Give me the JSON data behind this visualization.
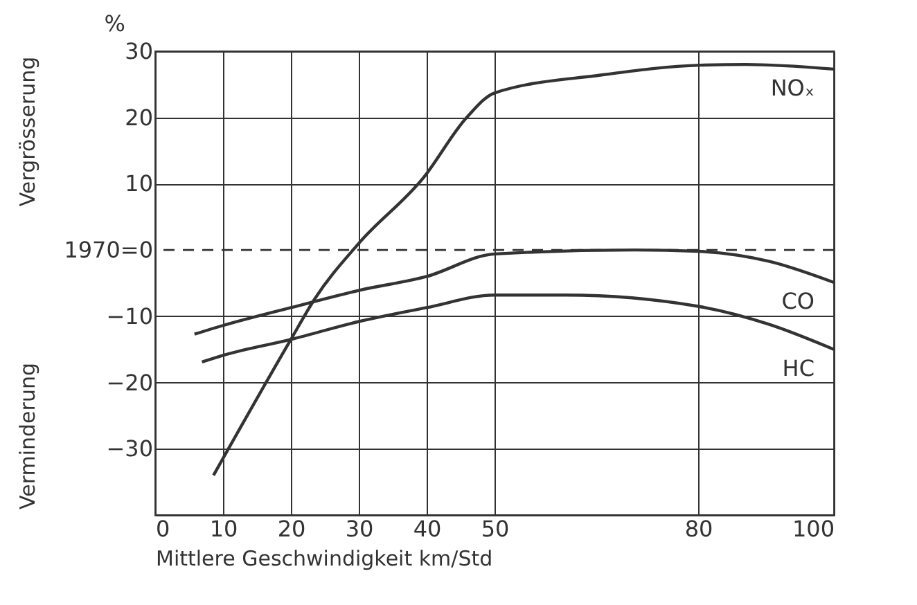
{
  "chart_data": {
    "type": "line",
    "xlabel": "Mittlere Geschwindigkeit km/Std",
    "ylabel": "%",
    "annotations": [
      "Vergrösserung",
      "Verminderung"
    ],
    "xlim": [
      0,
      100
    ],
    "xticks": [
      0,
      10,
      20,
      30,
      40,
      50,
      80,
      100
    ],
    "ylim": [
      -40,
      30
    ],
    "yticks": [
      {
        "value": -30,
        "label": "−30"
      },
      {
        "value": -20,
        "label": "−20"
      },
      {
        "value": -10,
        "label": "−10"
      },
      {
        "value": 0,
        "label": "1970=0"
      },
      10,
      20,
      30
    ],
    "grid": true,
    "legend": false,
    "marker": "none",
    "line_style": "solid",
    "ref_lines": [
      {
        "axis": "y",
        "value": 0,
        "line_style": "dashed",
        "color": "#333333"
      }
    ],
    "series": [
      {
        "name": "NOₓ",
        "color": "#333333",
        "x": [
          8.6,
          20,
          23.5,
          30,
          39.6,
          45.9,
          50,
          65.6,
          80.4,
          87,
          100
        ],
        "values": [
          -34,
          -13.5,
          -7.4,
          1,
          11,
          20,
          23.7,
          26.4,
          27.9,
          28,
          27.3
        ]
      },
      {
        "name": "CO",
        "color": "#333333",
        "x": [
          5.8,
          10,
          20,
          30,
          40,
          50,
          70.7,
          80,
          90.4,
          100
        ],
        "values": [
          -12.7,
          -11.4,
          -8.7,
          -6.1,
          -4,
          -0.6,
          0,
          -0.2,
          -1.7,
          -4.9
        ]
      },
      {
        "name": "HC",
        "color": "#333333",
        "x": [
          6.9,
          10,
          20,
          30,
          40,
          50,
          60.5,
          80,
          90.4,
          100
        ],
        "values": [
          -16.9,
          -15.9,
          -13.5,
          -10.8,
          -8.7,
          -6.8,
          -6.8,
          -8.5,
          -11.2,
          -15
        ]
      }
    ]
  }
}
